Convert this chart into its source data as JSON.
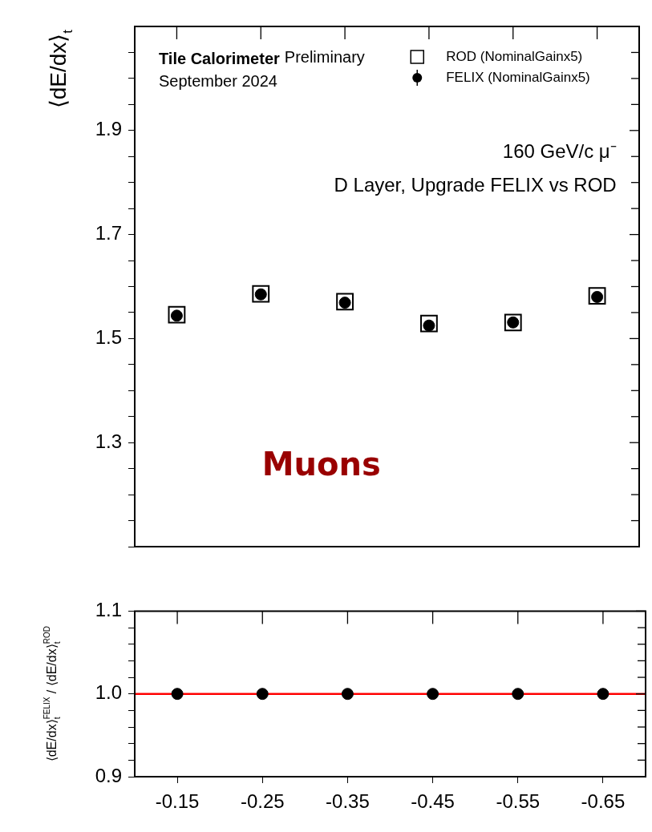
{
  "chart_data": [
    {
      "type": "scatter",
      "ylabel": "⟨dE/dx⟩$_{t}$",
      "categories": [
        "-0.15",
        "-0.25",
        "-0.35",
        "-0.45",
        "-0.55",
        "-0.65"
      ],
      "series": [
        {
          "name": "ROD (NominalGainx5)",
          "color": "#000000",
          "marker": "square",
          "values": [
            1.546,
            1.586,
            1.571,
            1.529,
            1.531,
            1.582
          ]
        },
        {
          "name": "FELIX (NominalGainx5)",
          "color": "#000000",
          "marker": "circle",
          "values": [
            1.544,
            1.585,
            1.569,
            1.525,
            1.531,
            1.58
          ]
        }
      ],
      "ylim": [
        1.1,
        2.1
      ],
      "yticks": [
        {
          "value": 1.1,
          "label": null
        },
        {
          "value": 1.15,
          "label": null
        },
        {
          "value": 1.2,
          "label": null
        },
        {
          "value": 1.25,
          "label": null
        },
        1.3,
        {
          "value": 1.35,
          "label": null
        },
        {
          "value": 1.4,
          "label": null
        },
        {
          "value": 1.45,
          "label": null
        },
        1.5,
        {
          "value": 1.55,
          "label": null
        },
        {
          "value": 1.6,
          "label": null
        },
        {
          "value": 1.65,
          "label": null
        },
        1.7,
        {
          "value": 1.75,
          "label": null
        },
        {
          "value": 1.8,
          "label": null
        },
        {
          "value": 1.85,
          "label": null
        },
        1.9,
        {
          "value": 1.95,
          "label": null
        },
        {
          "value": 2.0,
          "label": null
        },
        {
          "value": 2.05,
          "label": null
        }
      ],
      "tick_labels": "y",
      "legend": "top right",
      "grid": false,
      "annotations": [
        "Tile Calorimeter",
        "Preliminary",
        "September 2024",
        "160 GeV/c μ⁻",
        "D Layer, Upgrade FELIX vs ROD",
        "Muons"
      ]
    },
    {
      "type": "scatter",
      "ylabel": "⟨dE/dx⟩$_{t}$$^{FELIX}$ / ⟨dE/dx⟩$_{t}$$^{ROD}$",
      "categories": [
        "-0.15",
        "-0.25",
        "-0.35",
        "-0.45",
        "-0.55",
        "-0.65"
      ],
      "series": [
        {
          "color": "#000000",
          "marker": "circle",
          "values": [
            1.0,
            1.0,
            1.0,
            1.0,
            1.0,
            1.0
          ]
        }
      ],
      "ylim": [
        0.9,
        1.1
      ],
      "yticks": [
        0.9,
        {
          "value": 0.92,
          "label": null
        },
        {
          "value": 0.94,
          "label": null
        },
        {
          "value": 0.96,
          "label": null
        },
        {
          "value": 0.98,
          "label": null
        },
        {
          "value": 1.0,
          "label": "1.0"
        },
        {
          "value": 1.02,
          "label": null
        },
        {
          "value": 1.04,
          "label": null
        },
        {
          "value": 1.06,
          "label": null
        },
        {
          "value": 1.08,
          "label": null
        },
        1.1
      ],
      "ref_lines": [
        {
          "axis": "y",
          "value": 1.0,
          "color": "#ff0000"
        }
      ],
      "grid": false,
      "legend": false
    }
  ]
}
